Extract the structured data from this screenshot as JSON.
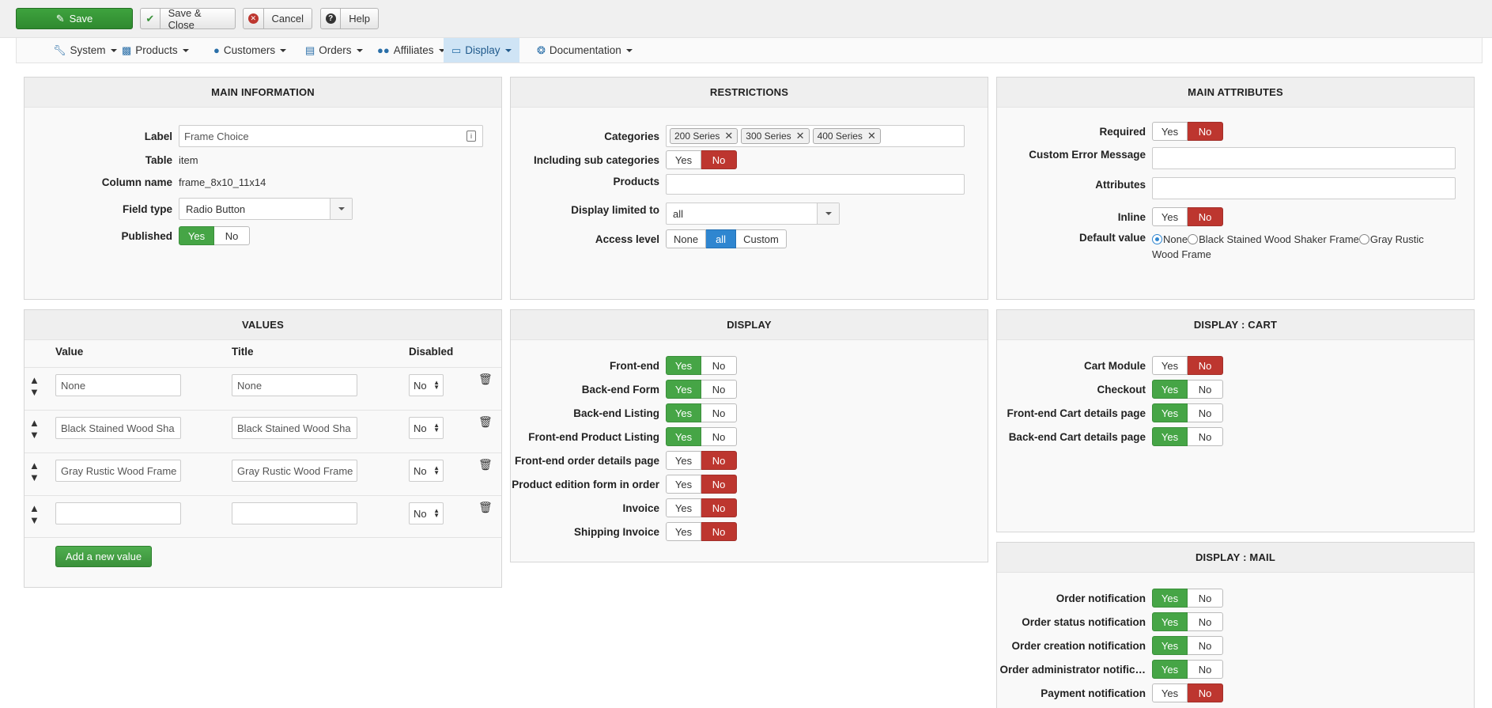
{
  "toolbar": {
    "save": "Save",
    "save_close": "Save & Close",
    "cancel": "Cancel",
    "help": "Help"
  },
  "nav": [
    {
      "label": "System",
      "icon": "wrench-icon"
    },
    {
      "label": "Products",
      "icon": "cubes-icon"
    },
    {
      "label": "Customers",
      "icon": "user-icon"
    },
    {
      "label": "Orders",
      "icon": "credit-card-icon"
    },
    {
      "label": "Affiliates",
      "icon": "users-icon"
    },
    {
      "label": "Display",
      "icon": "monitor-icon",
      "active": true
    },
    {
      "label": "Documentation",
      "icon": "lifebuoy-icon"
    }
  ],
  "main_info": {
    "title": "MAIN INFORMATION",
    "label_label": "Label",
    "label_value": "Frame Choice",
    "table_label": "Table",
    "table_value": "item",
    "column_label": "Column name",
    "column_value": "frame_8x10_11x14",
    "field_type_label": "Field type",
    "field_type_value": "Radio Button",
    "published_label": "Published",
    "yes": "Yes",
    "no": "No"
  },
  "restrictions": {
    "title": "RESTRICTIONS",
    "categories_label": "Categories",
    "categories": [
      "200 Series",
      "300 Series",
      "400 Series"
    ],
    "sub_categories_label": "Including sub categories",
    "products_label": "Products",
    "display_limited_label": "Display limited to",
    "display_limited_value": "all",
    "access_label": "Access level",
    "access_none": "None",
    "access_all": "all",
    "access_custom": "Custom",
    "yes": "Yes",
    "no": "No"
  },
  "main_attributes": {
    "title": "MAIN ATTRIBUTES",
    "required_label": "Required",
    "custom_error_label": "Custom Error Message",
    "attributes_label": "Attributes",
    "inline_label": "Inline",
    "default_label": "Default value",
    "default_options": [
      "None",
      "Black Stained Wood Shaker Frame",
      "Gray Rustic Wood Frame"
    ],
    "yes": "Yes",
    "no": "No"
  },
  "values": {
    "title": "VALUES",
    "col_value": "Value",
    "col_title": "Title",
    "col_disabled": "Disabled",
    "rows": [
      {
        "value": "None",
        "title": "None",
        "disabled": "No"
      },
      {
        "value": "Black Stained Wood Sha",
        "title": "Black Stained Wood Sha",
        "disabled": "No"
      },
      {
        "value": "Gray Rustic Wood Frame",
        "title": "Gray Rustic Wood Frame",
        "disabled": "No"
      },
      {
        "value": "",
        "title": "",
        "disabled": "No"
      }
    ],
    "add_label": "Add a new value"
  },
  "display": {
    "title": "DISPLAY",
    "rows": [
      {
        "label": "Front-end",
        "state": "yes"
      },
      {
        "label": "Back-end Form",
        "state": "yes"
      },
      {
        "label": "Back-end Listing",
        "state": "yes"
      },
      {
        "label": "Front-end Product Listing",
        "state": "yes"
      },
      {
        "label": "Front-end order details page",
        "state": "no"
      },
      {
        "label": "Product edition form in order",
        "state": "no"
      },
      {
        "label": "Invoice",
        "state": "no"
      },
      {
        "label": "Shipping Invoice",
        "state": "no"
      }
    ],
    "yes": "Yes",
    "no": "No"
  },
  "display_cart": {
    "title": "DISPLAY : CART",
    "rows": [
      {
        "label": "Cart Module",
        "state": "no"
      },
      {
        "label": "Checkout",
        "state": "yes"
      },
      {
        "label": "Front-end Cart details page",
        "state": "yes"
      },
      {
        "label": "Back-end Cart details page",
        "state": "yes"
      }
    ],
    "yes": "Yes",
    "no": "No"
  },
  "display_mail": {
    "title": "DISPLAY : MAIL",
    "rows": [
      {
        "label": "Order notification",
        "state": "yes"
      },
      {
        "label": "Order status notification",
        "state": "yes"
      },
      {
        "label": "Order creation notification",
        "state": "yes"
      },
      {
        "label": "Order administrator notific…",
        "state": "yes"
      },
      {
        "label": "Payment notification",
        "state": "no"
      }
    ],
    "yes": "Yes",
    "no": "No"
  }
}
